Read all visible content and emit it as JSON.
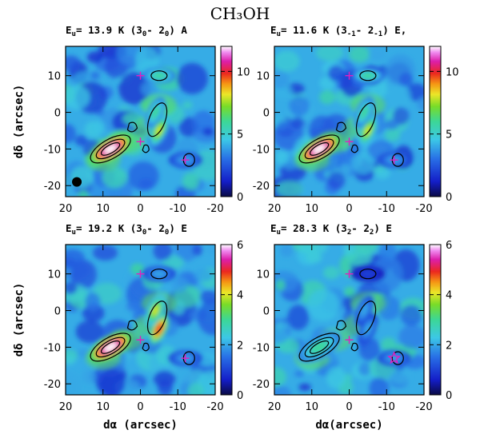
{
  "figure": {
    "title": "CH₃OH"
  },
  "chart_data": [
    {
      "type": "heatmap",
      "title_main": "E",
      "title_sub": "u",
      "title_rest": " = 13.9 K (3",
      "trans": [
        [
          "0",
          " - 2"
        ],
        [
          "0",
          ") A"
        ]
      ],
      "xlabel": "",
      "ylabel": "dδ (arcsec)",
      "xlim": [
        20,
        -20
      ],
      "ylim": [
        -23,
        18
      ],
      "xticks": [
        20,
        10,
        0,
        -10,
        -20
      ],
      "yticks": [
        10,
        0,
        -10,
        -20
      ],
      "colorbar": {
        "min": 0,
        "max": 12,
        "ticks": [
          0,
          5,
          10
        ]
      },
      "peaks": [
        {
          "x": 8,
          "y": -10,
          "level": 12
        },
        {
          "x": -5,
          "y": -5,
          "level": 8
        },
        {
          "x": -4,
          "y": 0,
          "level": 6
        },
        {
          "x": -5,
          "y": 10,
          "level": 6
        },
        {
          "x": -12,
          "y": -13,
          "level": 4
        }
      ],
      "markers": [
        {
          "type": "plus",
          "x": 0,
          "y": 10
        },
        {
          "type": "plus",
          "x": 0,
          "y": -8
        },
        {
          "type": "plus",
          "x": -12,
          "y": -13
        }
      ],
      "beam": true
    },
    {
      "type": "heatmap",
      "title_main": "E",
      "title_sub": "u",
      "title_rest": " = 11.6 K (3",
      "trans": [
        [
          "-1",
          " - 2"
        ],
        [
          "-1",
          ") E,"
        ]
      ],
      "xlabel": "",
      "ylabel": "",
      "xlim": [
        20,
        -20
      ],
      "ylim": [
        -23,
        18
      ],
      "xticks": [
        20,
        10,
        0,
        -10,
        -20
      ],
      "yticks": [
        10,
        0,
        -10,
        -20
      ],
      "colorbar": {
        "min": 0,
        "max": 12,
        "ticks": [
          0,
          5,
          10
        ]
      },
      "peaks": [
        {
          "x": 8,
          "y": -10,
          "level": 12
        },
        {
          "x": -5,
          "y": -5,
          "level": 8
        },
        {
          "x": -4,
          "y": 0,
          "level": 6
        },
        {
          "x": -5,
          "y": 10,
          "level": 6
        },
        {
          "x": -12,
          "y": -13,
          "level": 4
        }
      ],
      "markers": [
        {
          "type": "plus",
          "x": 0,
          "y": 10
        },
        {
          "type": "plus",
          "x": 0,
          "y": -8
        },
        {
          "type": "plus",
          "x": -12,
          "y": -13
        }
      ],
      "beam": false
    },
    {
      "type": "heatmap",
      "title_main": "E",
      "title_sub": "u",
      "title_rest": " = 19.2 K (3",
      "trans": [
        [
          "0",
          " - 2"
        ],
        [
          "0",
          ") E"
        ]
      ],
      "xlabel": "dα (arcsec)",
      "ylabel": "dδ (arcsec)",
      "xlim": [
        20,
        -20
      ],
      "ylim": [
        -23,
        18
      ],
      "xticks": [
        20,
        10,
        0,
        -10,
        -20
      ],
      "yticks": [
        10,
        0,
        -10,
        -20
      ],
      "colorbar": {
        "min": 0,
        "max": 6,
        "ticks": [
          0,
          2,
          4,
          6
        ]
      },
      "peaks": [
        {
          "x": 8,
          "y": -10,
          "level": 6
        },
        {
          "x": -5,
          "y": -5,
          "level": 5
        },
        {
          "x": -4,
          "y": 0,
          "level": 4
        },
        {
          "x": -5,
          "y": 10,
          "level": 2
        },
        {
          "x": -12,
          "y": -13,
          "level": 2
        }
      ],
      "markers": [
        {
          "type": "plus",
          "x": 0,
          "y": 10
        },
        {
          "type": "plus",
          "x": 0,
          "y": -8
        },
        {
          "type": "plus",
          "x": -12,
          "y": -13
        }
      ],
      "beam": false
    },
    {
      "type": "heatmap",
      "title_main": "E",
      "title_sub": "u",
      "title_rest": " = 28.3 K (3",
      "trans": [
        [
          "2",
          " - 2"
        ],
        [
          "2",
          ") E"
        ]
      ],
      "xlabel": "dα(arcsec)",
      "ylabel": "",
      "xlim": [
        20,
        -20
      ],
      "ylim": [
        -23,
        18
      ],
      "xticks": [
        20,
        10,
        0,
        -10,
        -20
      ],
      "yticks": [
        10,
        0,
        -10,
        -20
      ],
      "colorbar": {
        "min": 0,
        "max": 6,
        "ticks": [
          0,
          2,
          4,
          6
        ]
      },
      "peaks": [
        {
          "x": 8,
          "y": -10,
          "level": 3
        },
        {
          "x": -5,
          "y": -5,
          "level": 2
        },
        {
          "x": -4,
          "y": 0,
          "level": 2
        },
        {
          "x": -5,
          "y": 10,
          "level": 1
        },
        {
          "x": -12,
          "y": -13,
          "level": 2
        }
      ],
      "markers": [
        {
          "type": "plus",
          "x": 0,
          "y": 10
        },
        {
          "type": "plus",
          "x": 0,
          "y": -8
        },
        {
          "type": "star",
          "x": -12,
          "y": -13
        }
      ],
      "beam": false
    }
  ]
}
